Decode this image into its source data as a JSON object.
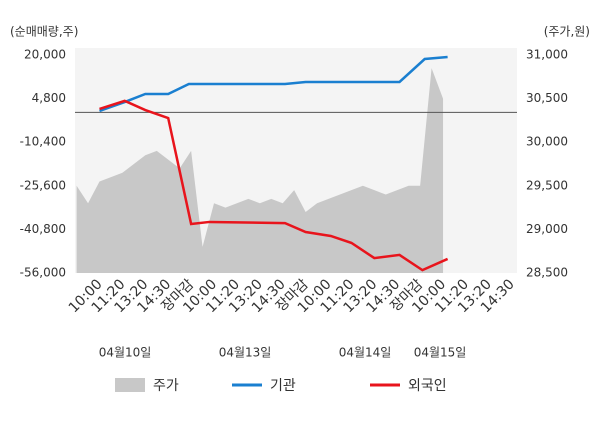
{
  "chart_data": {
    "type": "line",
    "y_axis_title": "(순매매량,주)",
    "y2_axis_title": "(주가,원)",
    "categories": [
      "10:00",
      "11:20",
      "13:20",
      "14:30",
      "장마감",
      "10:00",
      "11:20",
      "13:20",
      "14:30",
      "장마감",
      "10:00",
      "11:20",
      "13:20",
      "14:30",
      "장마감",
      "10:00",
      "11:20",
      "13:20",
      "14:30"
    ],
    "category_colors": [
      "#333",
      "#333",
      "#333",
      "#333",
      "#e8141c",
      "#333",
      "#333",
      "#333",
      "#333",
      "#e8141c",
      "#333",
      "#333",
      "#333",
      "#333",
      "#e8141c",
      "#333",
      "#333",
      "#333",
      "#333"
    ],
    "dates": [
      "04월10일",
      "04월13일",
      "04월14일",
      "04월15일"
    ],
    "xlim": [
      -0.87,
      18.43
    ],
    "ylim": [
      -56000,
      20000
    ],
    "yticks": [
      {
        "value": 20000,
        "label": "20,000"
      },
      {
        "value": 4800,
        "label": "4,800"
      },
      {
        "value": -10400,
        "label": "-10,400"
      },
      {
        "value": -25600,
        "label": "-25,600"
      },
      {
        "value": -40800,
        "label": "-40,800"
      },
      {
        "value": -56000,
        "label": "-56,000"
      }
    ],
    "y2lim": [
      28500,
      31000
    ],
    "y2ticks": [
      {
        "value": 31000,
        "label": "31,000"
      },
      {
        "value": 30500,
        "label": "30,500"
      },
      {
        "value": 30000,
        "label": "30,000"
      },
      {
        "value": 29500,
        "label": "29,500"
      },
      {
        "value": 29000,
        "label": "29,000"
      },
      {
        "value": 28500,
        "label": "28,500"
      }
    ],
    "zero_line": true,
    "series": [
      {
        "name": "주가",
        "type": "area",
        "axis": "y2",
        "color": "#c8c8c8",
        "x": [
          -0.8,
          -0.3,
          0.2,
          0.7,
          1.2,
          1.7,
          2.2,
          2.7,
          3.2,
          3.7,
          4.2,
          4.7,
          5.2,
          5.7,
          6.2,
          6.7,
          7.2,
          7.7,
          8.2,
          8.7,
          9.2,
          9.7,
          10.2,
          10.7,
          11.2,
          11.7,
          12.2,
          12.7,
          13.2,
          13.7,
          14.2,
          14.7,
          15.2
        ],
        "values": [
          29500,
          29300,
          29550,
          29600,
          29650,
          29750,
          29850,
          29900,
          29800,
          29700,
          29900,
          28800,
          29300,
          29250,
          29300,
          29350,
          29300,
          29350,
          29300,
          29450,
          29200,
          29300,
          29350,
          29400,
          29450,
          29500,
          29450,
          29400,
          29450,
          29500,
          29500,
          30850,
          30500
        ]
      },
      {
        "name": "기관",
        "type": "line",
        "color": "#1a7fd0",
        "x": [
          0.2,
          1.3,
          2.2,
          3.2,
          4.1,
          8.3,
          9.2,
          13.3,
          14.4,
          15.4
        ],
        "values": [
          500,
          3600,
          6400,
          6400,
          9900,
          9900,
          10600,
          10600,
          18600,
          19300
        ]
      },
      {
        "name": "외국인",
        "type": "line",
        "color": "#e8141c",
        "x": [
          0.2,
          1.3,
          2.2,
          3.2,
          4.2,
          5.0,
          8.3,
          9.2,
          10.3,
          11.2,
          12.2,
          13.3,
          14.3,
          15.4
        ],
        "values": [
          1200,
          4000,
          800,
          -2000,
          -38900,
          -38200,
          -38600,
          -41700,
          -43100,
          -45500,
          -50800,
          -49700,
          -55000,
          -51100
        ]
      }
    ]
  }
}
